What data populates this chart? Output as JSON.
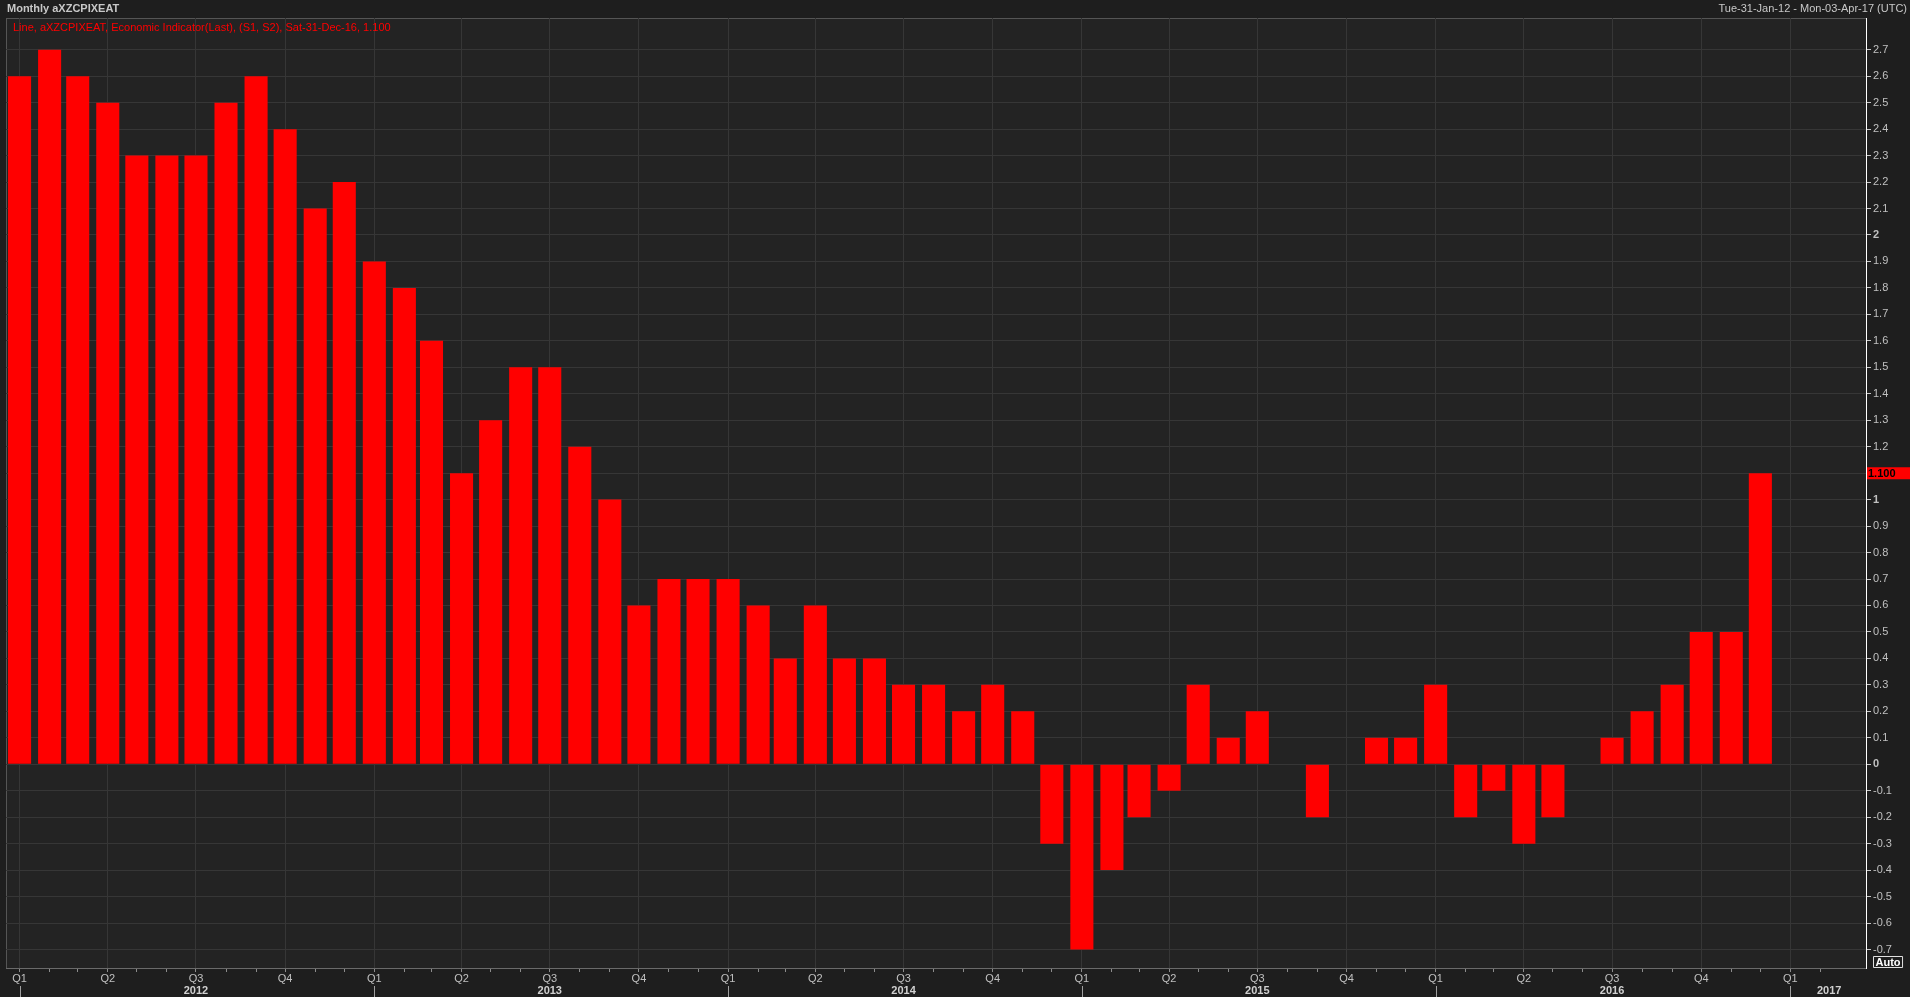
{
  "chart_data": {
    "type": "bar",
    "title": "Monthly aXZCPIXEAT",
    "subtitle": "Tue-31-Jan-12 - Mon-03-Apr-17 (UTC)",
    "x": [
      "2012-01",
      "2012-02",
      "2012-03",
      "2012-04",
      "2012-05",
      "2012-06",
      "2012-07",
      "2012-08",
      "2012-09",
      "2012-10",
      "2012-11",
      "2012-12",
      "2013-01",
      "2013-02",
      "2013-03",
      "2013-04",
      "2013-05",
      "2013-06",
      "2013-07",
      "2013-08",
      "2013-09",
      "2013-10",
      "2013-11",
      "2013-12",
      "2014-01",
      "2014-02",
      "2014-03",
      "2014-04",
      "2014-05",
      "2014-06",
      "2014-07",
      "2014-08",
      "2014-09",
      "2014-10",
      "2014-11",
      "2014-12",
      "2015-01",
      "2015-02",
      "2015-03",
      "2015-04",
      "2015-05",
      "2015-06",
      "2015-07",
      "2015-08",
      "2015-09",
      "2015-10",
      "2015-11",
      "2015-12",
      "2016-01",
      "2016-02",
      "2016-03",
      "2016-04",
      "2016-05",
      "2016-06",
      "2016-07",
      "2016-08",
      "2016-09",
      "2016-10",
      "2016-11",
      "2016-12"
    ],
    "series": [
      {
        "name": "Line, aXZCPIXEAT, Economic Indicator(Last), (S1, S2), Sat-31-Dec-16, 1.100",
        "color": "#ff0000",
        "values": [
          2.6,
          2.7,
          2.6,
          2.5,
          2.3,
          2.3,
          2.3,
          2.5,
          2.6,
          2.4,
          2.1,
          2.2,
          1.9,
          1.8,
          1.6,
          1.1,
          1.3,
          1.5,
          1.5,
          1.2,
          1.0,
          0.6,
          0.7,
          0.7,
          0.7,
          0.6,
          0.4,
          0.6,
          0.4,
          0.4,
          0.3,
          0.3,
          0.2,
          0.3,
          0.2,
          -0.3,
          -0.7,
          -0.4,
          -0.2,
          -0.1,
          0.3,
          0.1,
          0.2,
          0,
          -0.2,
          0,
          0.1,
          0.1,
          0.3,
          -0.2,
          -0.1,
          -0.3,
          -0.2,
          0,
          0.1,
          0.2,
          0.3,
          0.5,
          0.5,
          1.1
        ]
      }
    ],
    "xlim": [
      "2011-12-18",
      "2017-03-20"
    ],
    "xticks": [
      {
        "value": "2012-01",
        "label": "Q1"
      },
      {
        "value": "2012-02",
        "label": null
      },
      {
        "value": "2012-03",
        "label": null
      },
      {
        "value": "2012-04",
        "label": "Q2"
      },
      {
        "value": "2012-05",
        "label": null
      },
      {
        "value": "2012-06",
        "label": null
      },
      {
        "value": "2012-07",
        "label": "Q3"
      },
      {
        "value": "2012-08",
        "label": null
      },
      {
        "value": "2012-09",
        "label": null
      },
      {
        "value": "2012-10",
        "label": "Q4"
      },
      {
        "value": "2012-11",
        "label": null
      },
      {
        "value": "2012-12",
        "label": null
      },
      {
        "value": "2013-01",
        "label": "Q1"
      },
      {
        "value": "2013-02",
        "label": null
      },
      {
        "value": "2013-03",
        "label": null
      },
      {
        "value": "2013-04",
        "label": "Q2"
      },
      {
        "value": "2013-05",
        "label": null
      },
      {
        "value": "2013-06",
        "label": null
      },
      {
        "value": "2013-07",
        "label": "Q3"
      },
      {
        "value": "2013-08",
        "label": null
      },
      {
        "value": "2013-09",
        "label": null
      },
      {
        "value": "2013-10",
        "label": "Q4"
      },
      {
        "value": "2013-11",
        "label": null
      },
      {
        "value": "2013-12",
        "label": null
      },
      {
        "value": "2014-01",
        "label": "Q1"
      },
      {
        "value": "2014-02",
        "label": null
      },
      {
        "value": "2014-03",
        "label": null
      },
      {
        "value": "2014-04",
        "label": "Q2"
      },
      {
        "value": "2014-05",
        "label": null
      },
      {
        "value": "2014-06",
        "label": null
      },
      {
        "value": "2014-07",
        "label": "Q3"
      },
      {
        "value": "2014-08",
        "label": null
      },
      {
        "value": "2014-09",
        "label": null
      },
      {
        "value": "2014-10",
        "label": "Q4"
      },
      {
        "value": "2014-11",
        "label": null
      },
      {
        "value": "2014-12",
        "label": null
      },
      {
        "value": "2015-01",
        "label": "Q1"
      },
      {
        "value": "2015-02",
        "label": null
      },
      {
        "value": "2015-03",
        "label": null
      },
      {
        "value": "2015-04",
        "label": "Q2"
      },
      {
        "value": "2015-05",
        "label": null
      },
      {
        "value": "2015-06",
        "label": null
      },
      {
        "value": "2015-07",
        "label": "Q3"
      },
      {
        "value": "2015-08",
        "label": null
      },
      {
        "value": "2015-09",
        "label": null
      },
      {
        "value": "2015-10",
        "label": "Q4"
      },
      {
        "value": "2015-11",
        "label": null
      },
      {
        "value": "2015-12",
        "label": null
      },
      {
        "value": "2016-01",
        "label": "Q1"
      },
      {
        "value": "2016-02",
        "label": null
      },
      {
        "value": "2016-03",
        "label": null
      },
      {
        "value": "2016-04",
        "label": "Q2"
      },
      {
        "value": "2016-05",
        "label": null
      },
      {
        "value": "2016-06",
        "label": null
      },
      {
        "value": "2016-07",
        "label": "Q3"
      },
      {
        "value": "2016-08",
        "label": null
      },
      {
        "value": "2016-09",
        "label": null
      },
      {
        "value": "2016-10",
        "label": "Q4"
      },
      {
        "value": "2016-11",
        "label": null
      },
      {
        "value": "2016-12",
        "label": null
      },
      {
        "value": "2017-01",
        "label": "Q1"
      },
      {
        "value": "2017-02",
        "label": null
      }
    ],
    "x2lim": [
      "2011-12-18",
      "2017-03-20"
    ],
    "x2ticks": [
      {
        "value": "2012-01",
        "label": null
      },
      {
        "value": "2012-07",
        "label": "2012"
      },
      {
        "value": "2013-01",
        "label": null
      },
      {
        "value": "2013-07",
        "label": "2013"
      },
      {
        "value": "2014-01",
        "label": null
      },
      {
        "value": "2014-07",
        "label": "2014"
      },
      {
        "value": "2015-01",
        "label": null
      },
      {
        "value": "2015-07",
        "label": "2015"
      },
      {
        "value": "2016-01",
        "label": null
      },
      {
        "value": "2016-07",
        "label": "2016"
      },
      {
        "value": "2017-01",
        "label": null
      },
      {
        "value": "2017-02-10",
        "label": "2017"
      }
    ],
    "ylim": [
      -0.77,
      2.82
    ],
    "yticks": [
      -0.7,
      -0.6,
      -0.5,
      -0.4,
      -0.3,
      -0.2,
      -0.1,
      0,
      0.1,
      0.2,
      0.3,
      0.4,
      0.5,
      0.6,
      0.7,
      0.8,
      0.9,
      1,
      {
        "value": 1.1,
        "label": null
      },
      1.2,
      1.3,
      1.4,
      1.5,
      1.6,
      1.7,
      1.8,
      1.9,
      2,
      2.1,
      2.2,
      2.3,
      2.4,
      2.5,
      2.6,
      2.7
    ],
    "annotations": [
      "1.100",
      "Auto"
    ],
    "grid": true,
    "legend": "top left"
  }
}
